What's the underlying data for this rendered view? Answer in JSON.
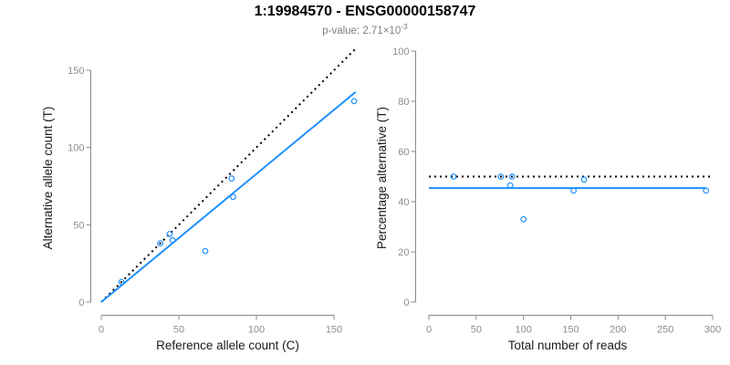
{
  "header": {
    "title": "1:19984570 - ENSG00000158747",
    "subtitle_text": "p-value: 2.71×10",
    "subtitle_sup": "-3"
  },
  "colors": {
    "accent": "#1E90FF",
    "axis": "#888888",
    "tick_label": "#8c8c8c",
    "axis_label": "#1a1a1a",
    "title": "#000000",
    "subtitle": "#7f7f7f",
    "background": "#ffffff"
  },
  "chart_data": [
    {
      "type": "scatter",
      "name": "allele-counts-scatter",
      "xlabel": "Reference allele count (C)",
      "ylabel": "Alternative allele count (T)",
      "xticks": [
        0,
        50,
        100,
        150
      ],
      "yticks": [
        0,
        50,
        100,
        150
      ],
      "xlim": [
        0,
        164
      ],
      "ylim": [
        0,
        164
      ],
      "grid": false,
      "points": [
        [
          13,
          13
        ],
        [
          38,
          38
        ],
        [
          44,
          44
        ],
        [
          46,
          40
        ],
        [
          67,
          33
        ],
        [
          85,
          68
        ],
        [
          84,
          80
        ],
        [
          163,
          130
        ]
      ],
      "lines": [
        {
          "name": "identity-line",
          "style": "dotted",
          "color": "#000000",
          "from": [
            0,
            0
          ],
          "to": [
            164,
            164
          ]
        },
        {
          "name": "fit-line",
          "style": "solid",
          "color": "#1E90FF",
          "from": [
            0,
            0
          ],
          "to": [
            164,
            136
          ]
        }
      ]
    },
    {
      "type": "scatter",
      "name": "percentage-scatter",
      "xlabel": "Total number of reads",
      "ylabel": "Percentage alternative (T)",
      "xticks": [
        0,
        50,
        100,
        150,
        200,
        250,
        300
      ],
      "yticks": [
        0,
        20,
        40,
        60,
        80,
        100
      ],
      "xlim": [
        0,
        300
      ],
      "ylim": [
        0,
        100
      ],
      "grid": false,
      "points": [
        [
          26,
          50
        ],
        [
          76,
          50
        ],
        [
          88,
          50
        ],
        [
          86,
          46.5
        ],
        [
          100,
          33
        ],
        [
          153,
          44.4
        ],
        [
          164,
          48.8
        ],
        [
          293,
          44.4
        ]
      ],
      "lines": [
        {
          "name": "expected-50-line",
          "style": "dotted",
          "color": "#000000",
          "y": 50,
          "x_from": 0,
          "x_to": 300
        },
        {
          "name": "mean-percentage-line",
          "style": "solid",
          "color": "#1E90FF",
          "y": 45.4,
          "x_from": 0,
          "x_to": 293
        }
      ]
    }
  ]
}
